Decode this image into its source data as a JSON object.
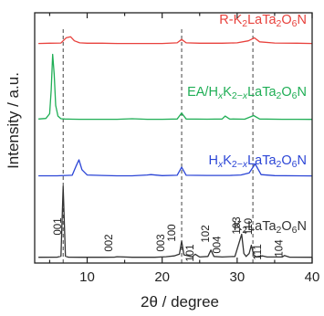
{
  "chart_data": {
    "type": "line",
    "xlabel": "2θ / degree",
    "ylabel": "Intensity / a.u.",
    "xlim": [
      3,
      40
    ],
    "xticks": [
      10,
      20,
      30,
      40
    ],
    "yticks": false,
    "grid": false,
    "dashed_reference_lines_x": [
      6.8,
      22.6,
      32.1
    ],
    "series": [
      {
        "name": "R-K2LaTa2O6N",
        "name_parts": [
          [
            "R-K",
            ""
          ],
          [
            "2",
            "sub"
          ],
          [
            "LaTa",
            ""
          ],
          [
            "2",
            "sub"
          ],
          [
            "O",
            ""
          ],
          [
            "6",
            "sub"
          ],
          [
            "N",
            ""
          ]
        ],
        "color": "#e8413c",
        "x": [
          3.5,
          5,
          6.5,
          7.2,
          7.8,
          8.3,
          9,
          10,
          12,
          14,
          16,
          18,
          20,
          22,
          22.6,
          23.2,
          25,
          28,
          30,
          31.5,
          32.3,
          33,
          35,
          38,
          40
        ],
        "y": [
          0.02,
          0.03,
          0.04,
          0.3,
          0.35,
          0.15,
          0.05,
          0.03,
          0.03,
          0.02,
          0.02,
          0.02,
          0.02,
          0.05,
          0.22,
          0.05,
          0.03,
          0.03,
          0.05,
          0.15,
          0.3,
          0.1,
          0.04,
          0.03,
          0.02
        ]
      },
      {
        "name": "EA/HxK2−xLaTa2O6N",
        "name_parts": [
          [
            "EA/H",
            ""
          ],
          [
            "x",
            "sub-i"
          ],
          [
            "K",
            ""
          ],
          [
            "2−",
            "sub"
          ],
          [
            "x",
            "sub-i"
          ],
          [
            "LaTa",
            ""
          ],
          [
            "2",
            "sub"
          ],
          [
            "O",
            ""
          ],
          [
            "6",
            "sub"
          ],
          [
            "N",
            ""
          ]
        ],
        "color": "#1fae55",
        "x": [
          3.5,
          4.5,
          5,
          5.2,
          5.4,
          5.6,
          5.8,
          6.1,
          6.5,
          7,
          8,
          9,
          11,
          14,
          16,
          18,
          20,
          22,
          22.6,
          23.2,
          26,
          28,
          28.4,
          29,
          31,
          32.2,
          33,
          36,
          38,
          40
        ],
        "y": [
          0.05,
          0.1,
          0.5,
          2.5,
          5.5,
          3.8,
          1.2,
          0.3,
          0.08,
          0.05,
          0.04,
          0.03,
          0.03,
          0.03,
          0.08,
          0.03,
          0.03,
          0.05,
          0.55,
          0.05,
          0.04,
          0.05,
          0.3,
          0.05,
          0.04,
          0.35,
          0.05,
          0.03,
          0.03,
          0.02
        ]
      },
      {
        "name": "HxK2−xLaTa2O6N",
        "name_parts": [
          [
            "H",
            ""
          ],
          [
            "x",
            "sub-i"
          ],
          [
            "K",
            ""
          ],
          [
            "2−",
            "sub"
          ],
          [
            "x",
            "sub-i"
          ],
          [
            "LaTa",
            ""
          ],
          [
            "2",
            "sub"
          ],
          [
            "O",
            ""
          ],
          [
            "6",
            "sub"
          ],
          [
            "N",
            ""
          ]
        ],
        "color": "#2b45d6",
        "x": [
          3.5,
          6,
          8,
          8.5,
          8.9,
          9.3,
          10,
          12,
          14,
          16,
          18,
          18.5,
          20,
          22,
          22.6,
          23.2,
          26,
          29,
          30.5,
          31.6,
          32.4,
          33.2,
          35,
          38,
          40
        ],
        "y": [
          0.03,
          0.03,
          0.06,
          0.6,
          1.0,
          0.4,
          0.08,
          0.05,
          0.03,
          0.03,
          0.08,
          0.1,
          0.04,
          0.06,
          0.55,
          0.06,
          0.05,
          0.05,
          0.08,
          0.2,
          0.75,
          0.1,
          0.04,
          0.03,
          0.02
        ]
      },
      {
        "name": "K2LaTa2O6N",
        "name_parts": [
          [
            "K",
            ""
          ],
          [
            "2",
            "sub"
          ],
          [
            "LaTa",
            ""
          ],
          [
            "2",
            "sub"
          ],
          [
            "O",
            ""
          ],
          [
            "6",
            "sub"
          ],
          [
            "N",
            ""
          ]
        ],
        "color": "#333333",
        "x": [
          3.5,
          6,
          6.5,
          6.8,
          7.1,
          7.5,
          9,
          12,
          13.6,
          14,
          16,
          19,
          20.5,
          21.6,
          22.3,
          22.6,
          22.9,
          24,
          24.4,
          25,
          26.1,
          26.5,
          26.9,
          28,
          29.7,
          30.6,
          30.9,
          31.2,
          31.6,
          31.9,
          32.2,
          32.5,
          33.4,
          34,
          36,
          36.3,
          37,
          40
        ],
        "y": [
          0.02,
          0.03,
          0.1,
          5.2,
          0.1,
          0.03,
          0.02,
          0.02,
          0.03,
          0.06,
          0.02,
          0.02,
          0.06,
          0.12,
          0.25,
          1.2,
          0.2,
          0.05,
          0.25,
          0.04,
          0.08,
          0.55,
          0.08,
          0.04,
          0.08,
          1.7,
          0.3,
          0.08,
          0.3,
          0.9,
          0.2,
          0.06,
          0.12,
          0.04,
          0.04,
          0.15,
          0.03,
          0.02
        ]
      }
    ],
    "peak_annotations": [
      {
        "label": "001",
        "x": 6.8
      },
      {
        "label": "002",
        "x": 13.6
      },
      {
        "label": "003",
        "x": 20.5
      },
      {
        "label": "100",
        "x": 22.0
      },
      {
        "label": "101",
        "x": 24.4
      },
      {
        "label": "102",
        "x": 26.5
      },
      {
        "label": "004",
        "x": 28.0
      },
      {
        "label": "103",
        "x": 30.6
      },
      {
        "label": "110",
        "x": 32.2
      },
      {
        "label": "111",
        "x": 33.4
      },
      {
        "label": "104",
        "x": 36.3
      }
    ]
  }
}
